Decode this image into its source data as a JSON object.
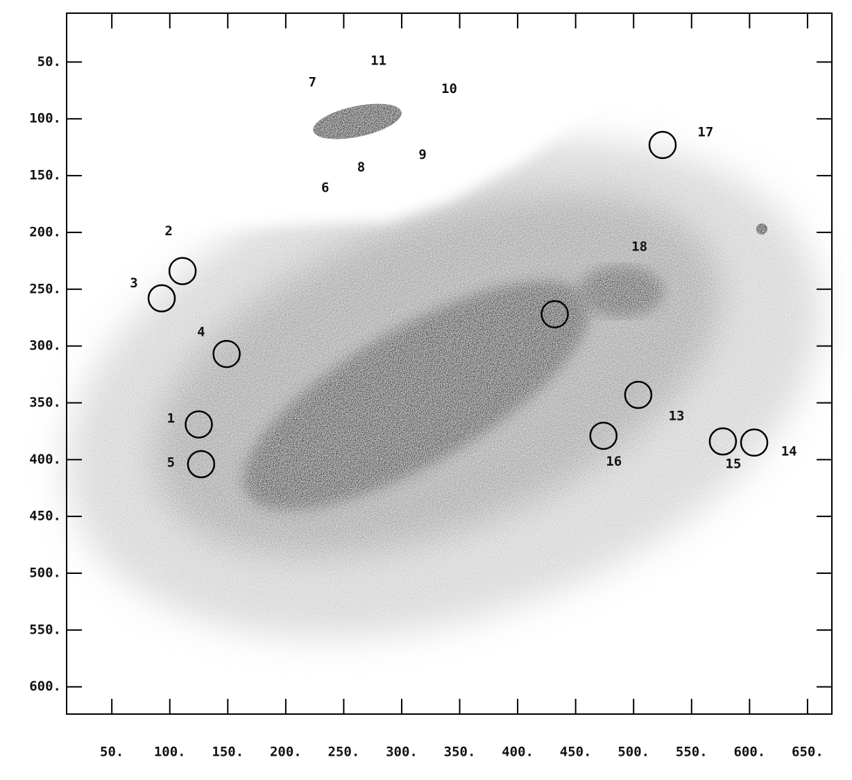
{
  "chart_data": {
    "type": "image",
    "xlim": [
      11,
      671
    ],
    "ylim": [
      624,
      7
    ],
    "xticks": [
      {
        "value": 50,
        "label": "50."
      },
      {
        "value": 100,
        "label": "100."
      },
      {
        "value": 150,
        "label": "150."
      },
      {
        "value": 200,
        "label": "200."
      },
      {
        "value": 250,
        "label": "250."
      },
      {
        "value": 300,
        "label": "300."
      },
      {
        "value": 350,
        "label": "350."
      },
      {
        "value": 400,
        "label": "400."
      },
      {
        "value": 450,
        "label": "450."
      },
      {
        "value": 500,
        "label": "500."
      },
      {
        "value": 550,
        "label": "550."
      },
      {
        "value": 600,
        "label": "600."
      },
      {
        "value": 650,
        "label": "650."
      }
    ],
    "yticks": [
      {
        "value": 50,
        "label": "50."
      },
      {
        "value": 100,
        "label": "100."
      },
      {
        "value": 150,
        "label": "150."
      },
      {
        "value": 200,
        "label": "200."
      },
      {
        "value": 250,
        "label": "250."
      },
      {
        "value": 300,
        "label": "300."
      },
      {
        "value": 350,
        "label": "350."
      },
      {
        "value": 400,
        "label": "400."
      },
      {
        "value": 450,
        "label": "450."
      },
      {
        "value": 500,
        "label": "500."
      },
      {
        "value": 550,
        "label": "550."
      },
      {
        "value": 600,
        "label": "600."
      }
    ],
    "circles": {
      "x": [
        125,
        111,
        93,
        149,
        127,
        432,
        504,
        604,
        577,
        474,
        525
      ],
      "y": [
        369,
        234,
        258,
        307,
        404,
        272,
        343,
        385,
        384,
        379,
        123
      ]
    },
    "annotations": [
      {
        "text": "1",
        "x": 101,
        "y": 364
      },
      {
        "text": "2",
        "x": 99,
        "y": 199
      },
      {
        "text": "3",
        "x": 69,
        "y": 245
      },
      {
        "text": "4",
        "x": 127,
        "y": 288
      },
      {
        "text": "5",
        "x": 101,
        "y": 403
      },
      {
        "text": "6",
        "x": 234,
        "y": 161
      },
      {
        "text": "7",
        "x": 223,
        "y": 68
      },
      {
        "text": "8",
        "x": 265,
        "y": 143
      },
      {
        "text": "9",
        "x": 318,
        "y": 132
      },
      {
        "text": "10",
        "x": 341,
        "y": 74
      },
      {
        "text": "11",
        "x": 280,
        "y": 49
      },
      {
        "text": "13",
        "x": 537,
        "y": 362
      },
      {
        "text": "14",
        "x": 634,
        "y": 393
      },
      {
        "text": "15",
        "x": 586,
        "y": 404
      },
      {
        "text": "16",
        "x": 483,
        "y": 402
      },
      {
        "text": "17",
        "x": 562,
        "y": 112
      },
      {
        "text": "18",
        "x": 505,
        "y": 213
      }
    ]
  }
}
